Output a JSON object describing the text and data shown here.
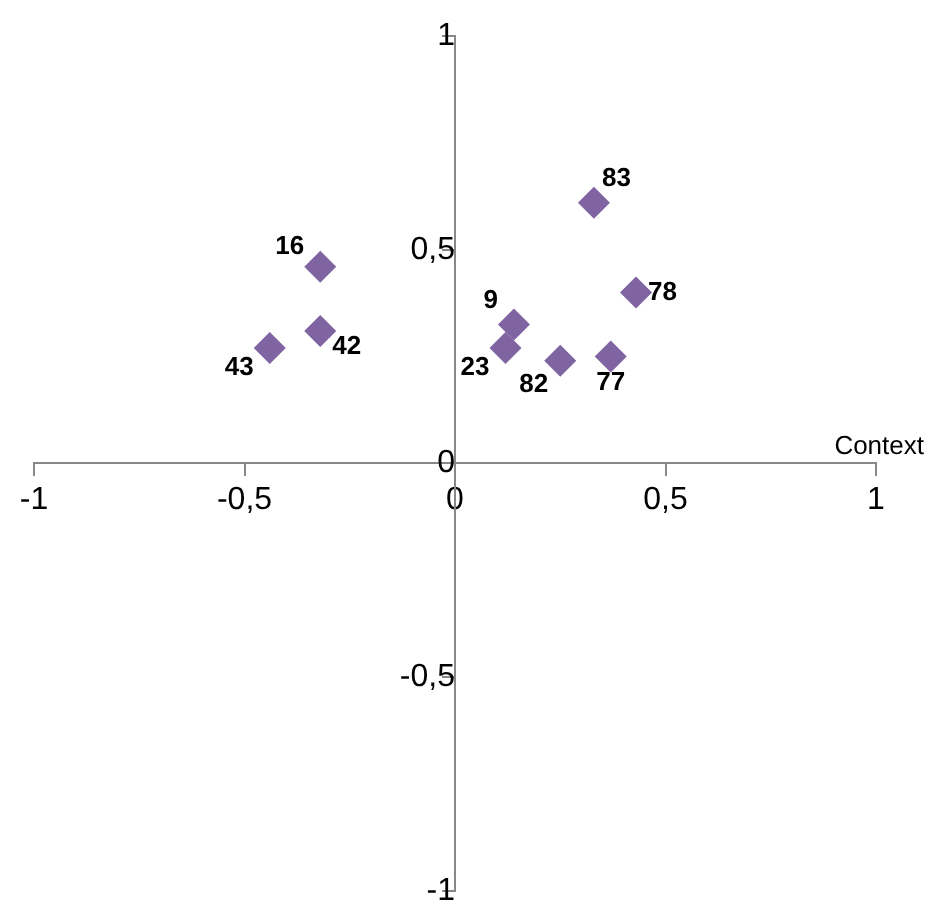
{
  "chart_data": {
    "type": "scatter",
    "xlabel": "Context",
    "x": [
      0.33,
      0.43,
      0.14,
      0.12,
      0.25,
      0.37,
      -0.32,
      -0.32,
      -0.44
    ],
    "series": [
      {
        "color": "#8064a2",
        "values": [
          0.61,
          0.4,
          0.325,
          0.27,
          0.24,
          0.25,
          0.46,
          0.31,
          0.27
        ]
      }
    ],
    "marker": "diamond",
    "grid": false,
    "legend": false,
    "xlim": [
      -1,
      1
    ],
    "ylim": [
      -1,
      1
    ],
    "xticks": [
      {
        "value": -1,
        "label": "-1"
      },
      {
        "value": -0.5,
        "label": "-0,5"
      },
      0,
      {
        "value": 0.5,
        "label": "0,5"
      },
      1
    ],
    "yticks": [
      {
        "value": -1,
        "label": "-1"
      },
      {
        "value": -0.5,
        "label": "-0,5"
      },
      0,
      {
        "value": 0.5,
        "label": "0,5"
      },
      1
    ],
    "annotations": [
      {
        "text": "83",
        "x": 0.33,
        "y": 0.61
      },
      {
        "text": "78",
        "x": 0.43,
        "y": 0.4
      },
      {
        "text": "9",
        "x": 0.14,
        "y": 0.325
      },
      {
        "text": "23",
        "x": 0.12,
        "y": 0.27
      },
      {
        "text": "82",
        "x": 0.25,
        "y": 0.24
      },
      {
        "text": "77",
        "x": 0.37,
        "y": 0.25
      },
      {
        "text": "16",
        "x": -0.32,
        "y": 0.46
      },
      {
        "text": "42",
        "x": -0.32,
        "y": 0.31
      },
      {
        "text": "43",
        "x": -0.44,
        "y": 0.27
      }
    ]
  }
}
